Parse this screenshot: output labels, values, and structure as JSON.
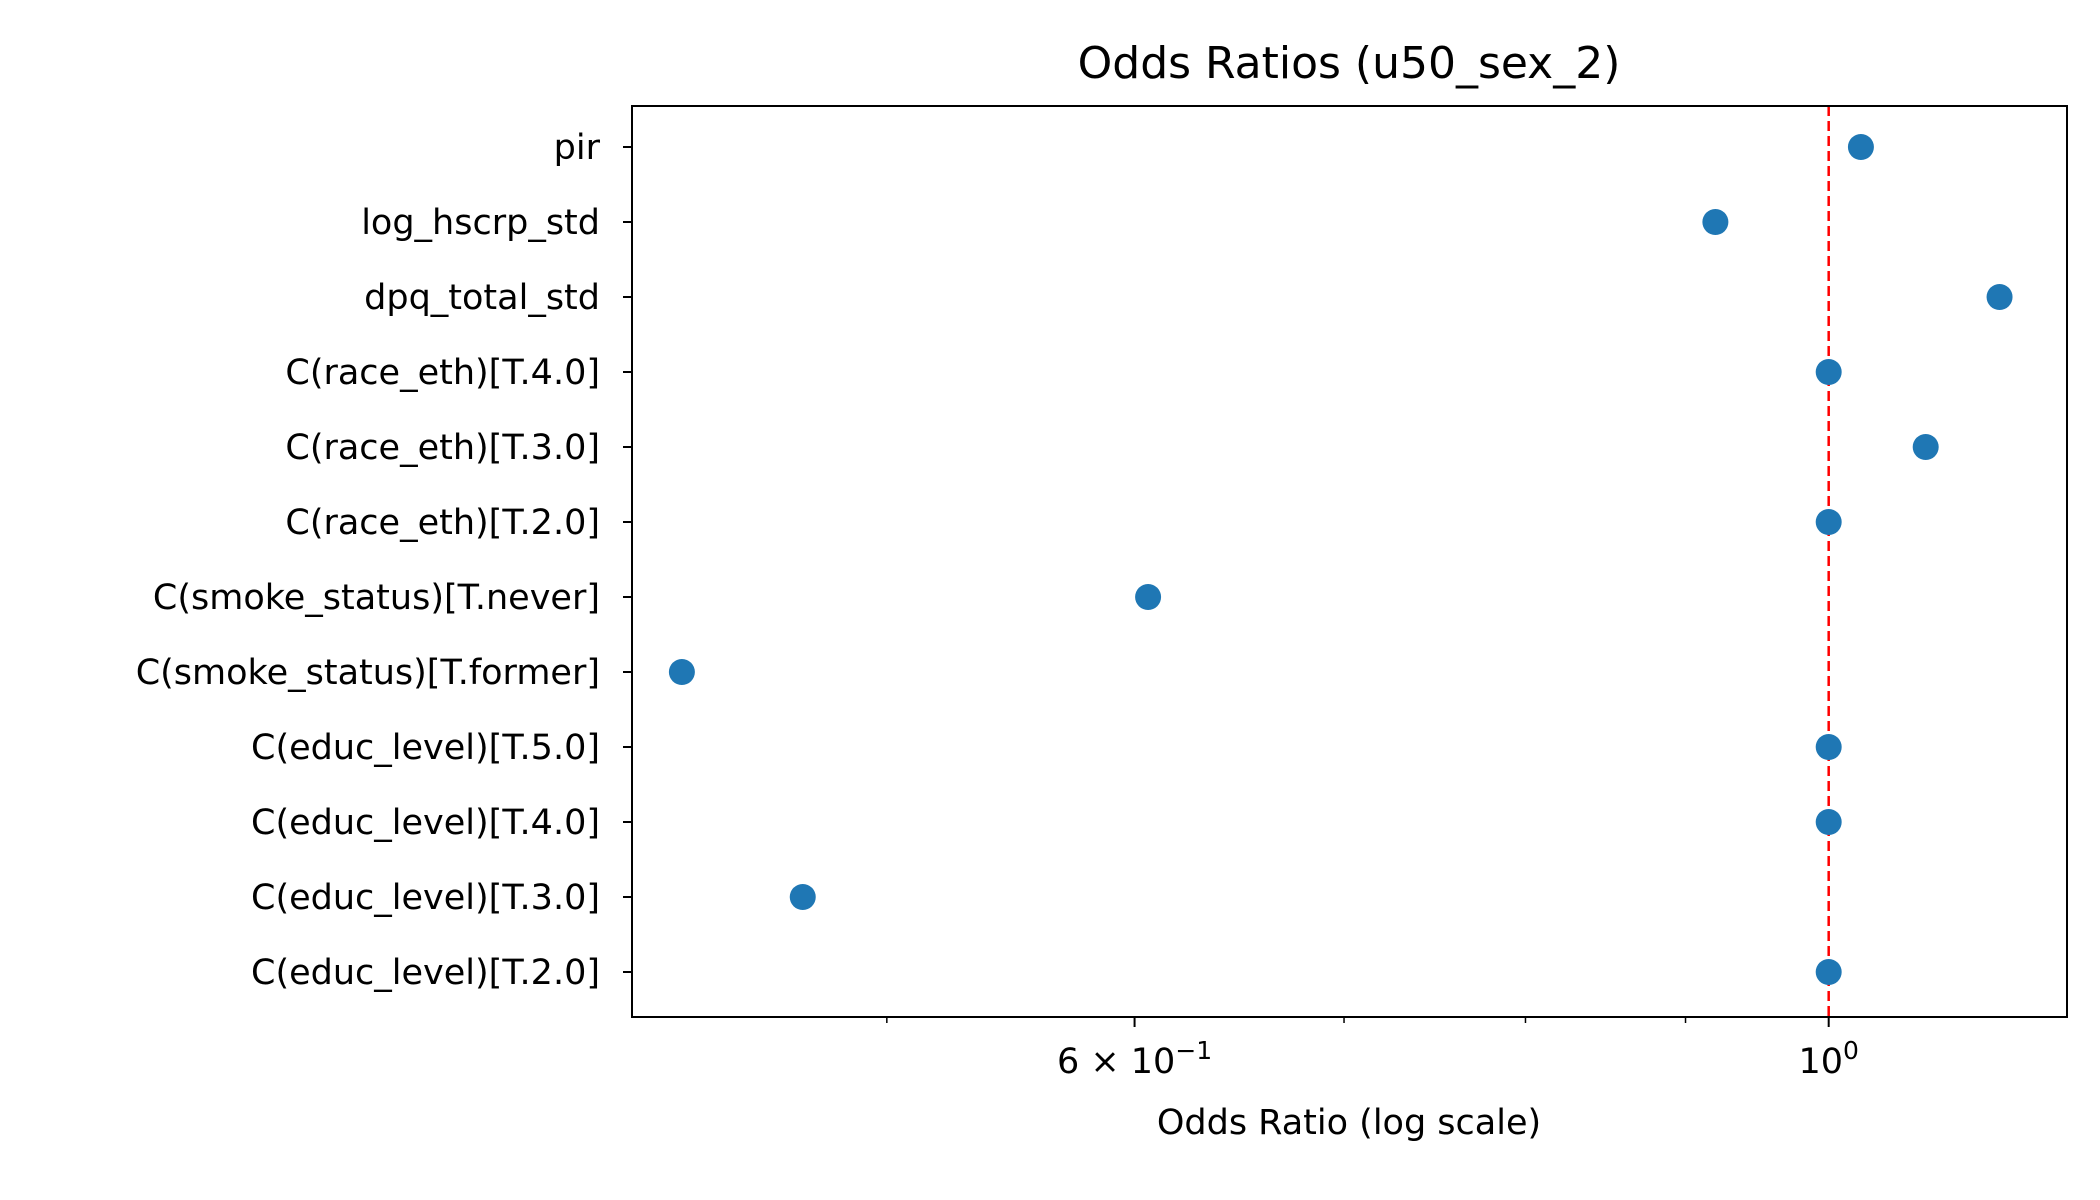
{
  "chart_data": {
    "type": "scatter",
    "title": "Odds Ratios (u50_sex_2)",
    "xlabel": "Odds Ratio (log scale)",
    "ylabel": "",
    "x_scale": "log",
    "xlim": [
      0.4145,
      1.1917
    ],
    "categories": [
      "pir",
      "log_hscrp_std",
      "dpq_total_std",
      "C(race_eth)[T.4.0]",
      "C(race_eth)[T.3.0]",
      "C(race_eth)[T.2.0]",
      "C(smoke_status)[T.never]",
      "C(smoke_status)[T.former]",
      "C(educ_level)[T.5.0]",
      "C(educ_level)[T.4.0]",
      "C(educ_level)[T.3.0]",
      "C(educ_level)[T.2.0]"
    ],
    "values": [
      1.024,
      0.92,
      1.134,
      1.0,
      1.074,
      1.0,
      0.606,
      0.43,
      1.0,
      1.0,
      0.47,
      1.0
    ],
    "reference_line": {
      "x": 1.0,
      "color": "#ff0000",
      "style": "dashed"
    },
    "x_ticks": [
      {
        "value": 0.6,
        "base": "6 × 10",
        "exp": "−1"
      },
      {
        "value": 1.0,
        "base": "10",
        "exp": "0"
      }
    ],
    "x_minor_ticks": [
      0.5,
      0.7,
      0.8,
      0.9
    ],
    "marker_color": "#1f77b4",
    "grid": false,
    "legend": "none"
  }
}
